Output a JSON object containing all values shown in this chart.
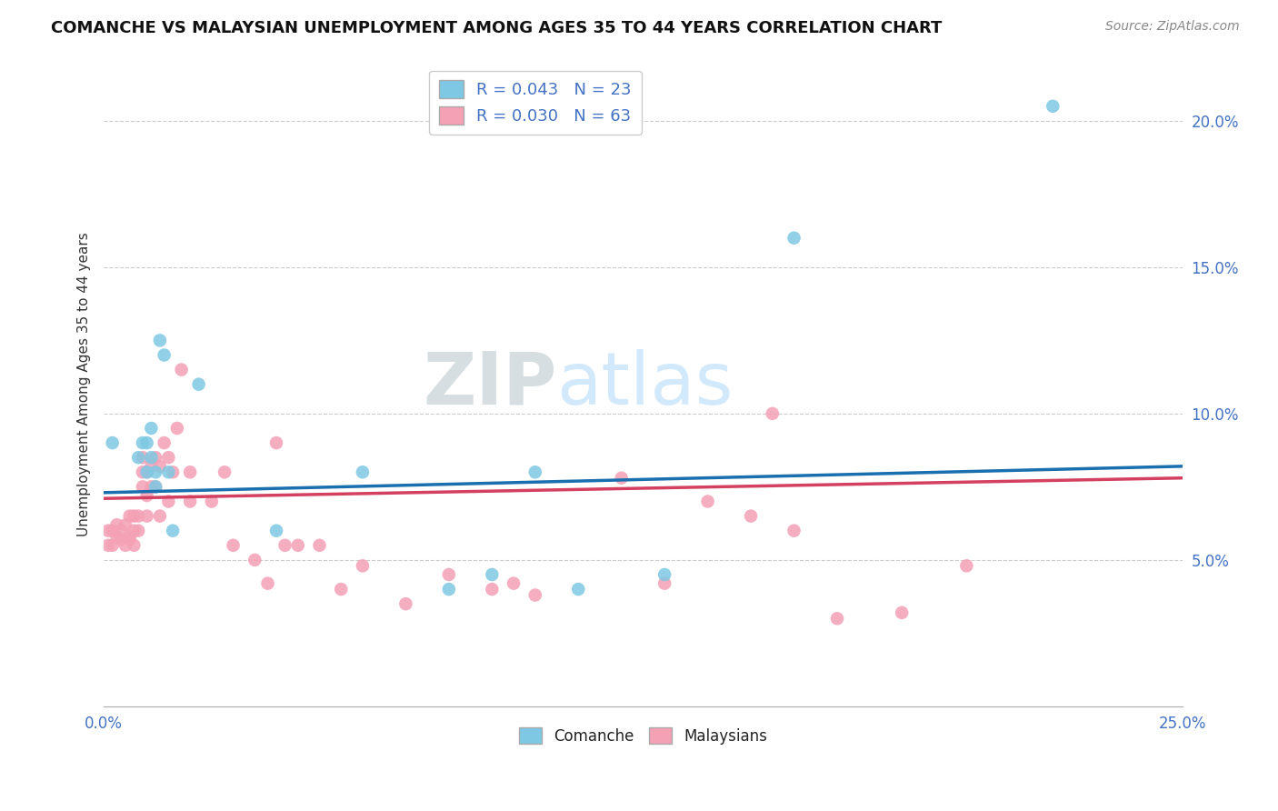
{
  "title": "COMANCHE VS MALAYSIAN UNEMPLOYMENT AMONG AGES 35 TO 44 YEARS CORRELATION CHART",
  "source": "Source: ZipAtlas.com",
  "ylabel": "Unemployment Among Ages 35 to 44 years",
  "xlim": [
    0.0,
    0.25
  ],
  "ylim": [
    0.0,
    0.22
  ],
  "xticks": [
    0.0,
    0.25
  ],
  "xticklabels": [
    "0.0%",
    "25.0%"
  ],
  "yticks": [
    0.05,
    0.1,
    0.15,
    0.2
  ],
  "yticklabels": [
    "5.0%",
    "10.0%",
    "15.0%",
    "20.0%"
  ],
  "grid_yticks": [
    0.05,
    0.1,
    0.15,
    0.2
  ],
  "comanche_color": "#7ec8e3",
  "malaysian_color": "#f4a0b5",
  "comanche_line_color": "#1a6faf",
  "malaysian_line_color": "#d44060",
  "background_color": "#ffffff",
  "comanche_R": 0.043,
  "comanche_N": 23,
  "malaysian_R": 0.03,
  "malaysian_N": 63,
  "comanche_x": [
    0.002,
    0.008,
    0.009,
    0.01,
    0.01,
    0.011,
    0.011,
    0.012,
    0.012,
    0.013,
    0.014,
    0.015,
    0.016,
    0.022,
    0.04,
    0.06,
    0.08,
    0.09,
    0.1,
    0.11,
    0.13,
    0.16,
    0.22
  ],
  "comanche_y": [
    0.09,
    0.085,
    0.09,
    0.08,
    0.09,
    0.085,
    0.095,
    0.075,
    0.08,
    0.125,
    0.12,
    0.08,
    0.06,
    0.11,
    0.06,
    0.08,
    0.04,
    0.045,
    0.08,
    0.04,
    0.045,
    0.16,
    0.205
  ],
  "malaysian_x": [
    0.001,
    0.001,
    0.002,
    0.002,
    0.003,
    0.003,
    0.004,
    0.004,
    0.005,
    0.005,
    0.006,
    0.006,
    0.006,
    0.007,
    0.007,
    0.007,
    0.008,
    0.008,
    0.009,
    0.009,
    0.009,
    0.01,
    0.01,
    0.01,
    0.011,
    0.011,
    0.012,
    0.012,
    0.013,
    0.013,
    0.014,
    0.015,
    0.015,
    0.016,
    0.017,
    0.018,
    0.02,
    0.02,
    0.025,
    0.028,
    0.03,
    0.035,
    0.038,
    0.04,
    0.042,
    0.045,
    0.05,
    0.055,
    0.06,
    0.07,
    0.08,
    0.09,
    0.095,
    0.1,
    0.12,
    0.13,
    0.14,
    0.15,
    0.155,
    0.16,
    0.17,
    0.185,
    0.2
  ],
  "malaysian_y": [
    0.055,
    0.06,
    0.055,
    0.06,
    0.058,
    0.062,
    0.057,
    0.06,
    0.055,
    0.062,
    0.057,
    0.058,
    0.065,
    0.055,
    0.06,
    0.065,
    0.06,
    0.065,
    0.075,
    0.08,
    0.085,
    0.065,
    0.072,
    0.08,
    0.075,
    0.082,
    0.075,
    0.085,
    0.065,
    0.082,
    0.09,
    0.07,
    0.085,
    0.08,
    0.095,
    0.115,
    0.07,
    0.08,
    0.07,
    0.08,
    0.055,
    0.05,
    0.042,
    0.09,
    0.055,
    0.055,
    0.055,
    0.04,
    0.048,
    0.035,
    0.045,
    0.04,
    0.042,
    0.038,
    0.078,
    0.042,
    0.07,
    0.065,
    0.1,
    0.06,
    0.03,
    0.032,
    0.048
  ],
  "line_intercept_comanche_start": 0.073,
  "line_intercept_comanche_end": 0.082,
  "line_intercept_malaysian_start": 0.071,
  "line_intercept_malaysian_end": 0.078
}
